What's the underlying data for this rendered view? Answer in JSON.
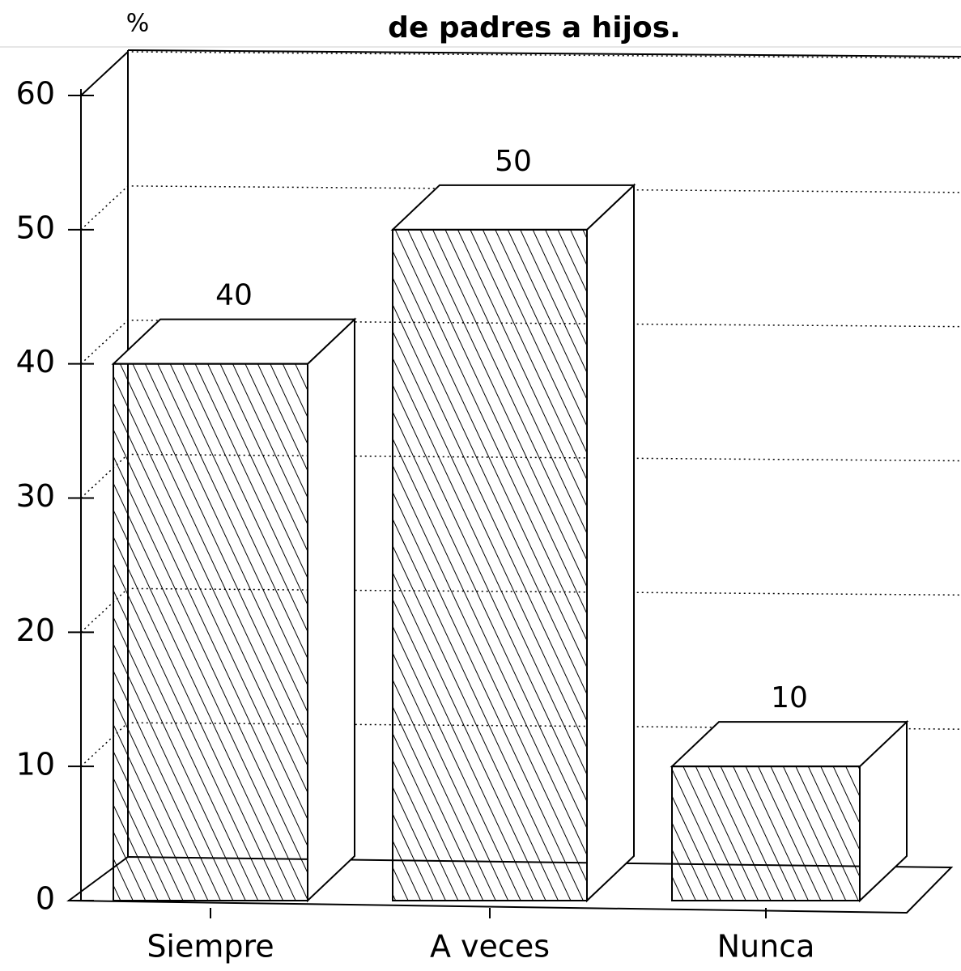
{
  "chart_data": {
    "type": "bar",
    "title": "de padres a hijos.",
    "y_label": "%",
    "categories": [
      "Siempre",
      "A veces",
      "Nunca"
    ],
    "values": [
      40,
      50,
      10
    ],
    "color": "#ffffff",
    "ylim": [
      0,
      60
    ],
    "yticks": [
      0,
      10,
      20,
      30,
      40,
      50,
      60
    ],
    "grid": true
  }
}
